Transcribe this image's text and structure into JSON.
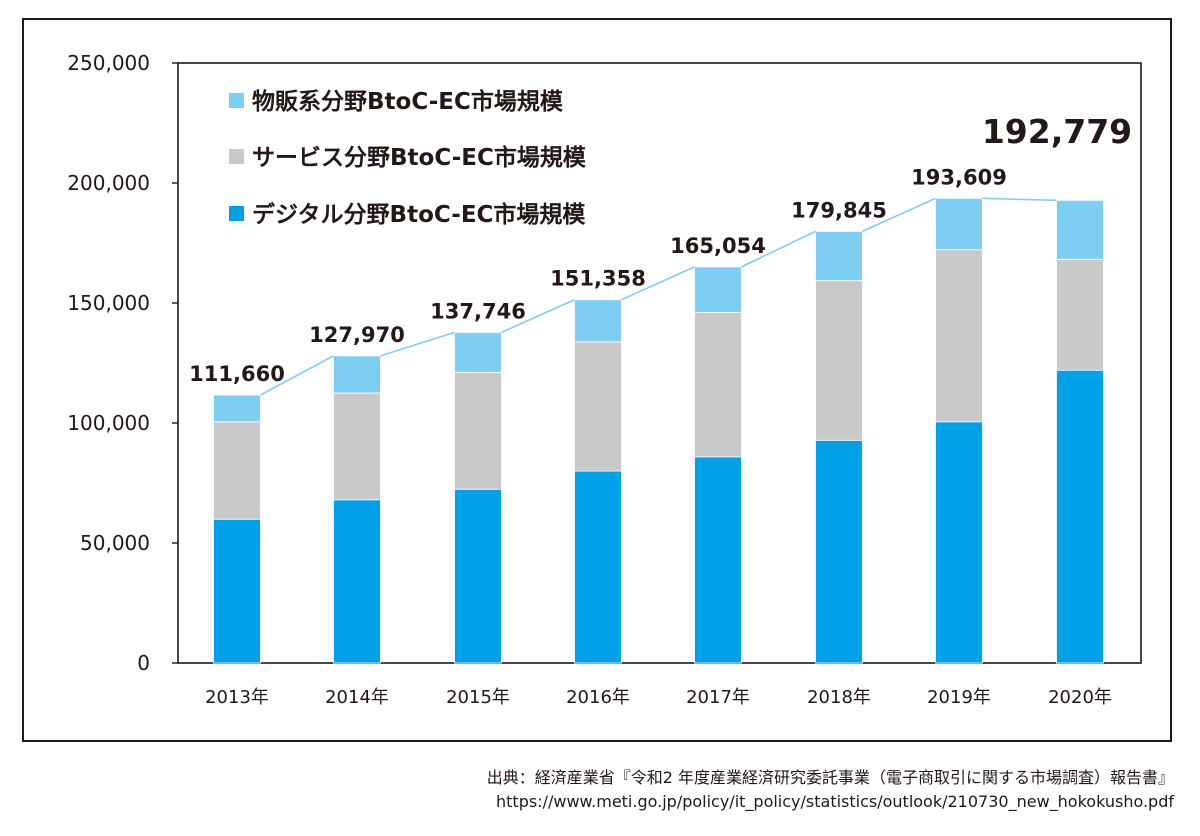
{
  "chart_data": {
    "type": "bar",
    "stacked": true,
    "categories": [
      "2013年",
      "2014年",
      "2015年",
      "2016年",
      "2017年",
      "2018年",
      "2019年",
      "2020年"
    ],
    "series": [
      {
        "name": "デジタル分野BtoC-EC市場規模",
        "color": "#00a0e9",
        "values": [
          59900,
          68000,
          72400,
          80000,
          85900,
          92800,
          100500,
          122000
        ]
      },
      {
        "name": "サービス分野BtoC-EC市場規模",
        "color": "#c9c9c9",
        "values": [
          40600,
          44500,
          48700,
          53800,
          60100,
          66500,
          71700,
          46200
        ]
      },
      {
        "name": "物販系分野BtoC-EC市場規模",
        "color": "#7ecef4",
        "values": [
          11160,
          15470,
          16646,
          17558,
          19054,
          20545,
          21409,
          24579
        ]
      }
    ],
    "totals": [
      111660,
      127970,
      137746,
      151358,
      165054,
      179845,
      193609,
      192779
    ],
    "total_labels": [
      "111,660",
      "127,970",
      "137,746",
      "151,358",
      "165,054",
      "179,845",
      "193,609",
      "192,779"
    ],
    "y_ticks": [
      0,
      50000,
      100000,
      150000,
      200000,
      250000
    ],
    "y_tick_labels": [
      "0",
      "50,000",
      "100,000",
      "150,000",
      "200,000",
      "250,000"
    ],
    "ylim": [
      0,
      250000
    ],
    "legend_order": [
      "物販系分野BtoC-EC市場規模",
      "サービス分野BtoC-EC市場規模",
      "デジタル分野BtoC-EC市場規模"
    ],
    "legend_position": "top-left",
    "trend_line_color": "#7ecef4",
    "grid": false
  },
  "source": {
    "line": "出典：経済産業省『令和2 年度産業経済研究委託事業（電子商取引に関する市場調査）報告書』",
    "url": "https://www.meti.go.jp/policy/it_policy/statistics/outlook/210730_new_hokokusho.pdf"
  }
}
